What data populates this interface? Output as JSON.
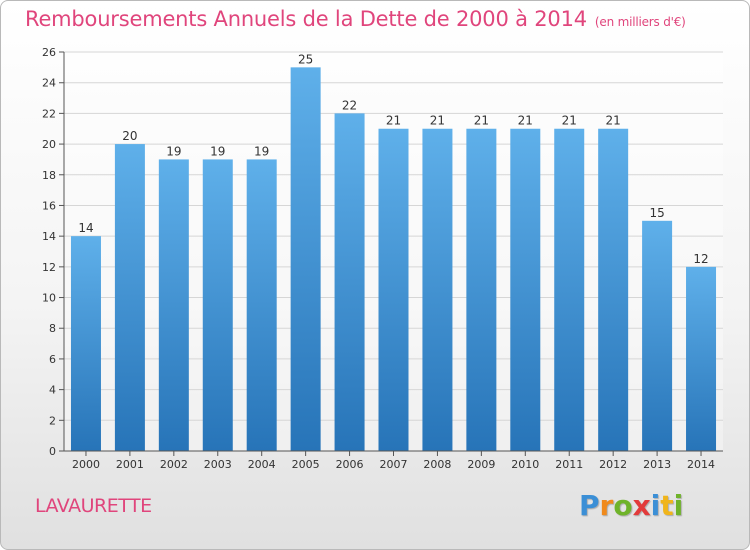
{
  "title": "Remboursements Annuels de la Dette de 2000 à 2014",
  "unit": "(en milliers d'€)",
  "commune": "LAVAURETTE",
  "brand": {
    "letters": [
      "P",
      "r",
      "o",
      "x",
      "i",
      "t",
      "i"
    ],
    "colors": [
      "#3b8fd6",
      "#f08a1c",
      "#6fb32a",
      "#e23b3b",
      "#3b8fd6",
      "#f0b51c",
      "#6fb32a"
    ]
  },
  "colors": {
    "bar_top": "#5fb0ea",
    "bar_bottom": "#2774b8",
    "axis": "#555555",
    "grid": "#d6d6d6",
    "title": "#e0457c"
  },
  "chart_data": {
    "type": "bar",
    "title": "Remboursements Annuels de la Dette de 2000 à 2014",
    "ylabel": "",
    "xlabel": "",
    "categories": [
      "2000",
      "2001",
      "2002",
      "2003",
      "2004",
      "2005",
      "2006",
      "2007",
      "2008",
      "2009",
      "2010",
      "2011",
      "2012",
      "2013",
      "2014"
    ],
    "values": [
      14,
      20,
      19,
      19,
      19,
      25,
      22,
      21,
      21,
      21,
      21,
      21,
      21,
      15,
      12
    ],
    "ylim": [
      0,
      26
    ],
    "ytick_step": 2,
    "grid": true,
    "data_labels": true
  }
}
